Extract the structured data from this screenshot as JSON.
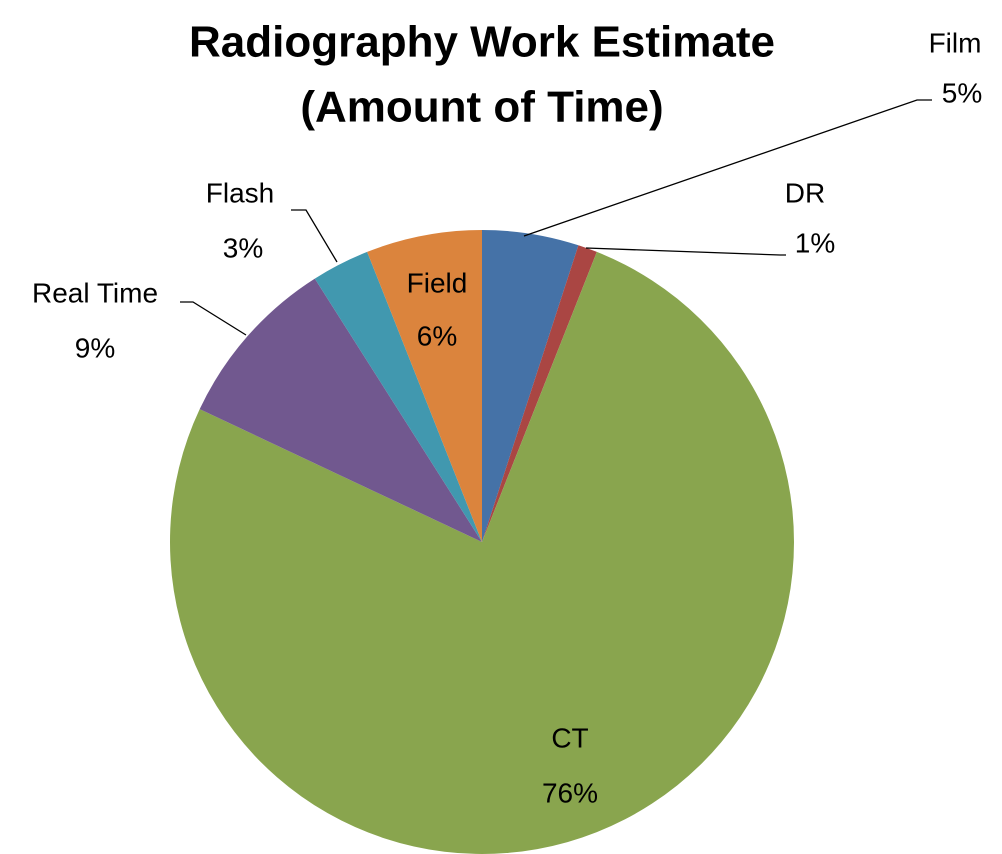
{
  "chart_data": {
    "type": "pie",
    "title": [
      "Radiography Work Estimate",
      "(Amount of Time)"
    ],
    "categories": [
      "Film",
      "DR",
      "CT",
      "Real Time",
      "Flash",
      "Field"
    ],
    "values": [
      5,
      1,
      76,
      9,
      3,
      6
    ],
    "value_labels": [
      "5%",
      "1%",
      "76%",
      "9%",
      "3%",
      "6%"
    ],
    "colors": [
      "#4572a7",
      "#aa4643",
      "#89a54e",
      "#71588f",
      "#4198af",
      "#db843d"
    ]
  }
}
